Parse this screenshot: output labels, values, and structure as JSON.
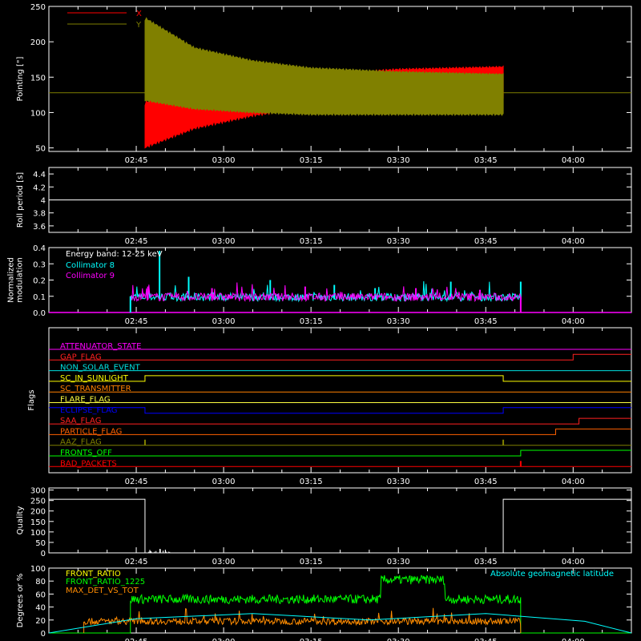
{
  "time_ticks": [
    "02:45",
    "03:00",
    "03:15",
    "03:30",
    "03:45",
    "04:00"
  ],
  "colors": {
    "x": "#ff0000",
    "y": "#808000",
    "collimator8": "#00ffff",
    "collimator9": "#ff00ff",
    "front_ratio": "#ffff00",
    "front_ratio_1225": "#00ff00",
    "max_det": "#ff8c00",
    "latitude": "#00ffff"
  },
  "chart_data": [
    {
      "type": "area",
      "ylabel": "Pointing [\"]",
      "ylim": [
        45,
        250
      ],
      "yticks": [
        50,
        100,
        150,
        200,
        250
      ],
      "legend": [
        "X",
        "Y"
      ],
      "baseline": 128,
      "data_start": "02:46:30",
      "data_end": "03:48:00",
      "series": [
        {
          "name": "X",
          "x": [
            "02:46:30",
            "02:55",
            "03:05",
            "03:15",
            "03:30",
            "03:48"
          ],
          "upper": [
            110,
            128,
            140,
            150,
            158,
            162
          ],
          "lower": [
            55,
            82,
            100,
            112,
            120,
            122
          ]
        },
        {
          "name": "Y",
          "x": [
            "02:46:30",
            "02:55",
            "03:05",
            "03:15",
            "03:30",
            "03:48"
          ],
          "upper": [
            230,
            188,
            170,
            160,
            155,
            152
          ],
          "lower": [
            120,
            108,
            103,
            100,
            100,
            100
          ]
        }
      ]
    },
    {
      "type": "line",
      "ylabel": "Roll period [s]",
      "ylim": [
        3.5,
        4.5
      ],
      "yticks": [
        3.6,
        3.8,
        4.0,
        4.2,
        4.4
      ],
      "value": 4.0
    },
    {
      "type": "line",
      "ylabel": "Normalized\nmodulation",
      "ylim": [
        0,
        0.4
      ],
      "yticks": [
        "0.0",
        "0.1",
        "0.2",
        "0.3",
        "0.4"
      ],
      "annotation": "Energy band: 12-25 keV",
      "data_start": "02:44",
      "data_end": "03:51",
      "series": [
        {
          "name": "Collimator 8",
          "typical": 0.09,
          "spikes": [
            [
              "02:49",
              0.38
            ],
            [
              "02:54",
              0.22
            ],
            [
              "03:08",
              0.2
            ],
            [
              "03:19",
              0.17
            ],
            [
              "03:26",
              0.15
            ],
            [
              "03:39",
              0.19
            ],
            [
              "03:51",
              0.19
            ]
          ]
        },
        {
          "name": "Collimator 9",
          "typical": 0.09,
          "spikes": [
            [
              "02:47",
              0.16
            ],
            [
              "02:58",
              0.15
            ],
            [
              "03:14",
              0.16
            ],
            [
              "03:33",
              0.15
            ],
            [
              "03:44",
              0.14
            ]
          ]
        }
      ]
    },
    {
      "type": "line",
      "ylabel": "Flags",
      "flags": [
        {
          "name": "ATTENUATOR_STATE",
          "color": "#ff00ff",
          "steps": []
        },
        {
          "name": "GAP_FLAG",
          "color": "#ff2020",
          "steps": [
            [
              "04:00",
              "high"
            ]
          ]
        },
        {
          "name": "NON_SOLAR_EVENT",
          "color": "#00e0e0",
          "steps": []
        },
        {
          "name": "SC_IN_SUNLIGHT",
          "color": "#ffff00",
          "steps": [
            [
              "02:46:30",
              "high"
            ],
            [
              "03:48",
              "low"
            ]
          ]
        },
        {
          "name": "SC_TRANSMITTER",
          "color": "#ff8000",
          "steps": []
        },
        {
          "name": "FLARE_FLAG",
          "color": "#ffff40",
          "steps": []
        },
        {
          "name": "ECLIPSE_FLAG",
          "color": "#0000ff",
          "steps": [
            [
              "02:46:30",
              "low"
            ],
            [
              "03:48",
              "high"
            ]
          ]
        },
        {
          "name": "SAA_FLAG",
          "color": "#ff2020",
          "steps": [
            [
              "04:01",
              "high"
            ]
          ]
        },
        {
          "name": "PARTICLE_FLAG",
          "color": "#ff6000",
          "steps": [
            [
              "03:57",
              "high"
            ]
          ]
        },
        {
          "name": "AAZ_FLAG",
          "color": "#808000",
          "pulses": [
            "02:46:30",
            "03:48"
          ]
        },
        {
          "name": "FRONTS_OFF",
          "color": "#00ff00",
          "steps": [
            [
              "02:44",
              "low"
            ],
            [
              "03:51",
              "high"
            ]
          ]
        },
        {
          "name": "BAD_PACKETS",
          "color": "#ff0000",
          "pulses": [
            "03:51"
          ]
        }
      ]
    },
    {
      "type": "line",
      "ylabel": "Quality",
      "ylim": [
        0,
        310
      ],
      "yticks": [
        0,
        50,
        100,
        150,
        200,
        250,
        300
      ],
      "segments": [
        [
          "02:30",
          "02:46:30",
          256
        ],
        [
          "02:46:30",
          "03:48",
          0
        ],
        [
          "03:48",
          "04:10",
          256
        ]
      ]
    },
    {
      "type": "line",
      "ylabel": "Degrees or %",
      "ylim": [
        0,
        100
      ],
      "yticks": [
        0,
        20,
        40,
        60,
        80,
        100
      ],
      "annotation": "Absolute geomagnetic latitude",
      "series": [
        {
          "name": "FRONT_RATIO",
          "typical": 0,
          "start": "02:44",
          "end": "03:51"
        },
        {
          "name": "FRONT_RATIO_1225",
          "typical": 52,
          "start": "02:44",
          "end": "03:51",
          "high_segment": [
            "03:27",
            "03:38",
            82
          ]
        },
        {
          "name": "MAX_DET_VS_TOT",
          "typical": 18,
          "start": "02:36",
          "end": "03:51"
        }
      ],
      "latitude": [
        [
          "02:30",
          0
        ],
        [
          "02:45",
          22
        ],
        [
          "03:05",
          30
        ],
        [
          "03:25",
          20
        ],
        [
          "03:45",
          30
        ],
        [
          "04:02",
          18
        ],
        [
          "04:10",
          0
        ]
      ]
    }
  ]
}
